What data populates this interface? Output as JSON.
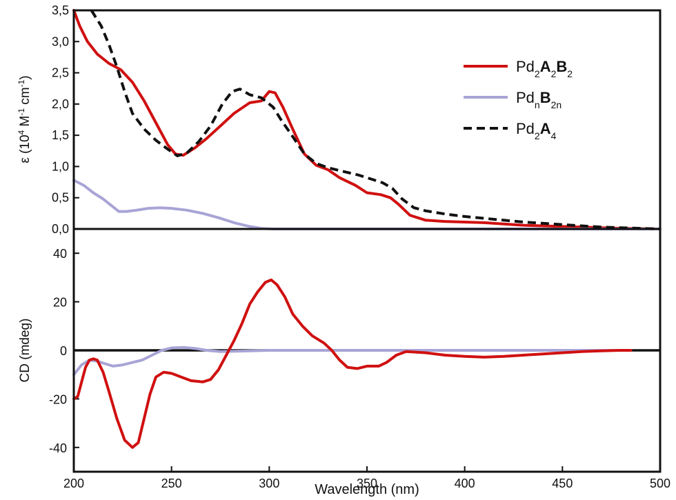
{
  "chart_data": [
    {
      "type": "line",
      "panel": "top",
      "ylabel_prefix": "ε (10",
      "ylabel_sup1": "4",
      "ylabel_mid": " M",
      "ylabel_sup2": "-1",
      "ylabel_mid2": " cm",
      "ylabel_sup3": "-1",
      "ylabel_suffix": ")",
      "xlim": [
        200,
        500
      ],
      "ylim": [
        0,
        3.5
      ],
      "yticks": [
        0,
        0.5,
        1.0,
        1.5,
        2.0,
        2.5,
        3.0,
        3.5
      ],
      "ytick_labels": [
        "0,0",
        "0,5",
        "1,0",
        "1,5",
        "2,0",
        "2,5",
        "3,0",
        "3,5"
      ],
      "legend_position": "top-right",
      "series": [
        {
          "name": "Pd2A2B2",
          "legend": [
            {
              "t": "Pd",
              "s": "n"
            },
            {
              "t": "2",
              "s": "sub"
            },
            {
              "t": "A",
              "s": "b"
            },
            {
              "t": "2",
              "s": "sub"
            },
            {
              "t": "B",
              "s": "b"
            },
            {
              "t": "2",
              "s": "sub"
            }
          ],
          "color": "#d01010",
          "dash": "solid",
          "points": [
            [
              200,
              3.5
            ],
            [
              203,
              3.25
            ],
            [
              207,
              3.0
            ],
            [
              212,
              2.8
            ],
            [
              218,
              2.65
            ],
            [
              224,
              2.55
            ],
            [
              230,
              2.35
            ],
            [
              236,
              2.05
            ],
            [
              242,
              1.7
            ],
            [
              248,
              1.35
            ],
            [
              252,
              1.2
            ],
            [
              256,
              1.18
            ],
            [
              262,
              1.3
            ],
            [
              268,
              1.45
            ],
            [
              275,
              1.65
            ],
            [
              282,
              1.85
            ],
            [
              290,
              2.02
            ],
            [
              296,
              2.05
            ],
            [
              300,
              2.2
            ],
            [
              303,
              2.18
            ],
            [
              307,
              1.95
            ],
            [
              312,
              1.6
            ],
            [
              318,
              1.2
            ],
            [
              324,
              1.02
            ],
            [
              330,
              0.95
            ],
            [
              336,
              0.82
            ],
            [
              344,
              0.7
            ],
            [
              350,
              0.58
            ],
            [
              357,
              0.55
            ],
            [
              362,
              0.5
            ],
            [
              366,
              0.4
            ],
            [
              372,
              0.22
            ],
            [
              380,
              0.14
            ],
            [
              390,
              0.12
            ],
            [
              400,
              0.11
            ],
            [
              410,
              0.1
            ],
            [
              420,
              0.08
            ],
            [
              430,
              0.06
            ],
            [
              440,
              0.05
            ],
            [
              450,
              0.04
            ],
            [
              460,
              0.03
            ],
            [
              470,
              0.02
            ],
            [
              480,
              0.01
            ],
            [
              490,
              0.005
            ],
            [
              500,
              0
            ]
          ]
        },
        {
          "name": "PdnB2n",
          "legend": [
            {
              "t": "Pd",
              "s": "n"
            },
            {
              "t": "n",
              "s": "sub"
            },
            {
              "t": "B",
              "s": "b"
            },
            {
              "t": "2n",
              "s": "sub"
            }
          ],
          "color": "#a8a4d6",
          "dash": "solid",
          "points": [
            [
              200,
              0.78
            ],
            [
              205,
              0.7
            ],
            [
              210,
              0.58
            ],
            [
              215,
              0.48
            ],
            [
              219,
              0.38
            ],
            [
              223,
              0.28
            ],
            [
              227,
              0.28
            ],
            [
              232,
              0.3
            ],
            [
              238,
              0.33
            ],
            [
              244,
              0.34
            ],
            [
              250,
              0.33
            ],
            [
              258,
              0.3
            ],
            [
              266,
              0.25
            ],
            [
              274,
              0.18
            ],
            [
              282,
              0.1
            ],
            [
              290,
              0.04
            ],
            [
              296,
              0.01
            ],
            [
              302,
              0
            ],
            [
              320,
              0
            ],
            [
              360,
              0
            ],
            [
              400,
              0
            ],
            [
              450,
              0
            ],
            [
              500,
              0
            ]
          ]
        },
        {
          "name": "Pd2A4",
          "legend": [
            {
              "t": "Pd",
              "s": "n"
            },
            {
              "t": "2",
              "s": "sub"
            },
            {
              "t": "A",
              "s": "b"
            },
            {
              "t": "4",
              "s": "sub"
            }
          ],
          "color": "#111111",
          "dash": "dashed",
          "points": [
            [
              209,
              3.5
            ],
            [
              214,
              3.25
            ],
            [
              218,
              2.95
            ],
            [
              222,
              2.6
            ],
            [
              226,
              2.2
            ],
            [
              230,
              1.85
            ],
            [
              236,
              1.6
            ],
            [
              242,
              1.42
            ],
            [
              248,
              1.28
            ],
            [
              253,
              1.17
            ],
            [
              258,
              1.22
            ],
            [
              264,
              1.4
            ],
            [
              270,
              1.65
            ],
            [
              276,
              2.0
            ],
            [
              281,
              2.2
            ],
            [
              285,
              2.24
            ],
            [
              290,
              2.15
            ],
            [
              296,
              2.1
            ],
            [
              302,
              1.95
            ],
            [
              306,
              1.75
            ],
            [
              312,
              1.48
            ],
            [
              318,
              1.2
            ],
            [
              324,
              1.05
            ],
            [
              330,
              0.98
            ],
            [
              338,
              0.92
            ],
            [
              346,
              0.86
            ],
            [
              352,
              0.8
            ],
            [
              358,
              0.74
            ],
            [
              363,
              0.65
            ],
            [
              368,
              0.48
            ],
            [
              374,
              0.34
            ],
            [
              380,
              0.29
            ],
            [
              390,
              0.24
            ],
            [
              400,
              0.2
            ],
            [
              410,
              0.17
            ],
            [
              420,
              0.14
            ],
            [
              430,
              0.11
            ],
            [
              440,
              0.09
            ],
            [
              450,
              0.07
            ],
            [
              460,
              0.05
            ],
            [
              470,
              0.03
            ],
            [
              480,
              0.02
            ],
            [
              490,
              0.01
            ],
            [
              500,
              0
            ]
          ]
        }
      ]
    },
    {
      "type": "line",
      "panel": "bottom",
      "ylabel": "CD (mdeg)",
      "xlabel": "Wavelength (nm)",
      "xlim": [
        200,
        500
      ],
      "ylim": [
        -50,
        50
      ],
      "xticks": [
        200,
        250,
        300,
        350,
        400,
        450,
        500
      ],
      "xtick_labels": [
        "200",
        "250",
        "300",
        "350",
        "400",
        "450",
        "500"
      ],
      "yticks": [
        -40,
        -20,
        0,
        20,
        40
      ],
      "ytick_labels": [
        "-40",
        "-20",
        "0",
        "20",
        "40"
      ],
      "zero_line": true,
      "series": [
        {
          "name": "Pd2A2B2",
          "color": "#d01010",
          "dash": "solid",
          "points": [
            [
              200,
              -20
            ],
            [
              202,
              -19
            ],
            [
              204,
              -13
            ],
            [
              206,
              -7
            ],
            [
              208,
              -4
            ],
            [
              210,
              -3.5
            ],
            [
              212,
              -4
            ],
            [
              215,
              -9
            ],
            [
              218,
              -17
            ],
            [
              222,
              -28
            ],
            [
              226,
              -37
            ],
            [
              230,
              -40
            ],
            [
              233,
              -38
            ],
            [
              236,
              -28
            ],
            [
              239,
              -18
            ],
            [
              242,
              -11
            ],
            [
              246,
              -9
            ],
            [
              250,
              -9.5
            ],
            [
              255,
              -11
            ],
            [
              260,
              -12.5
            ],
            [
              266,
              -13
            ],
            [
              270,
              -12
            ],
            [
              274,
              -8
            ],
            [
              278,
              -2
            ],
            [
              282,
              4
            ],
            [
              286,
              11
            ],
            [
              290,
              19
            ],
            [
              294,
              24
            ],
            [
              298,
              28
            ],
            [
              301,
              29
            ],
            [
              304,
              27
            ],
            [
              308,
              22
            ],
            [
              312,
              15
            ],
            [
              317,
              10
            ],
            [
              322,
              6
            ],
            [
              328,
              3
            ],
            [
              332,
              0
            ],
            [
              336,
              -4
            ],
            [
              340,
              -7
            ],
            [
              345,
              -7.5
            ],
            [
              350,
              -6.5
            ],
            [
              356,
              -6.5
            ],
            [
              360,
              -5
            ],
            [
              365,
              -2
            ],
            [
              370,
              -0.5
            ],
            [
              380,
              -1
            ],
            [
              390,
              -2
            ],
            [
              400,
              -2.5
            ],
            [
              410,
              -2.8
            ],
            [
              420,
              -2.5
            ],
            [
              430,
              -2
            ],
            [
              440,
              -1.5
            ],
            [
              450,
              -1
            ],
            [
              460,
              -0.5
            ],
            [
              470,
              -0.2
            ],
            [
              480,
              0
            ],
            [
              485,
              0
            ]
          ]
        },
        {
          "name": "PdnB2n",
          "color": "#a8a4d6",
          "dash": "solid",
          "points": [
            [
              200,
              -10
            ],
            [
              204,
              -6
            ],
            [
              208,
              -4
            ],
            [
              212,
              -4.5
            ],
            [
              216,
              -5.5
            ],
            [
              220,
              -6.5
            ],
            [
              225,
              -6
            ],
            [
              230,
              -5
            ],
            [
              235,
              -4
            ],
            [
              240,
              -2
            ],
            [
              245,
              0
            ],
            [
              250,
              1
            ],
            [
              256,
              1.2
            ],
            [
              262,
              0.8
            ],
            [
              268,
              0
            ],
            [
              275,
              -0.5
            ],
            [
              285,
              -0.3
            ],
            [
              300,
              0
            ],
            [
              320,
              0
            ],
            [
              350,
              0
            ],
            [
              400,
              0
            ],
            [
              450,
              0
            ],
            [
              485,
              0
            ]
          ]
        }
      ]
    }
  ]
}
